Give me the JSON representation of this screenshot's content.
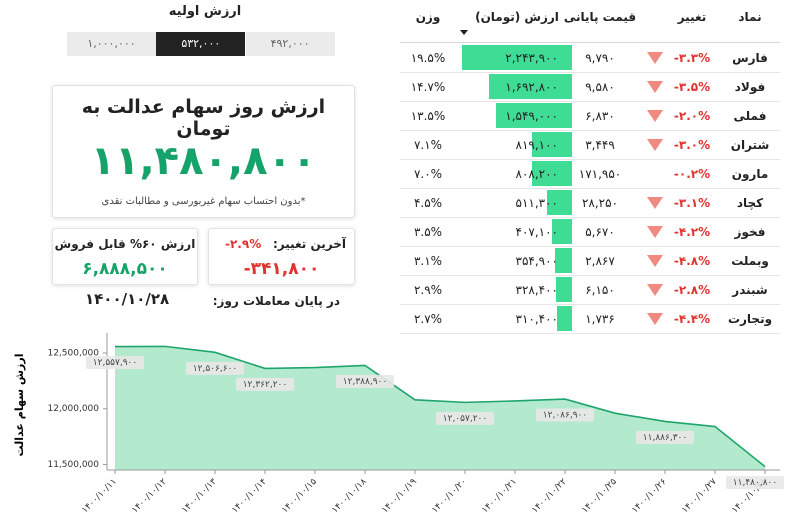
{
  "initial_value": {
    "title": "ارزش اولیه",
    "options": [
      "۱,۰۰۰,۰۰۰",
      "۵۳۲,۰۰۰",
      "۴۹۲,۰۰۰"
    ],
    "selected": 1
  },
  "summary": {
    "title": "ارزش روز سهام عدالت به تومان",
    "value": "۱۱,۴۸۰,۸۰۰",
    "note": "*بدون احتساب سهام غیربورسی و مطالبات نقدی"
  },
  "sellable": {
    "label": "ارزش ۶۰% قابل فروش",
    "value": "۶,۸۸۸,۵۰۰"
  },
  "last_change": {
    "label": "آخرین تغییر:",
    "percent": "-۲.۹%",
    "amount": "-۳۴۱,۸۰۰"
  },
  "end_of_day": {
    "label": "در پایان معاملات روز:",
    "date": "۱۴۰۰/۱۰/۲۸"
  },
  "table": {
    "headers": [
      "نماد",
      "تغییر",
      "قیمت پایانی",
      "ارزش (تومان)",
      "وزن"
    ],
    "rows": [
      {
        "symbol": "فارس",
        "change": "-۳.۳%",
        "down_arrow": true,
        "price": "۹,۷۹۰",
        "value": 2243900,
        "value_label": "۲,۲۴۳,۹۰۰",
        "weight": "۱۹.۵%"
      },
      {
        "symbol": "فولاد",
        "change": "-۳.۵%",
        "down_arrow": true,
        "price": "۹,۵۸۰",
        "value": 1692800,
        "value_label": "۱,۶۹۲,۸۰۰",
        "weight": "۱۴.۷%"
      },
      {
        "symbol": "فملی",
        "change": "-۲.۰%",
        "down_arrow": true,
        "price": "۶,۸۳۰",
        "value": 1549000,
        "value_label": "۱,۵۴۹,۰۰۰",
        "weight": "۱۳.۵%"
      },
      {
        "symbol": "شتران",
        "change": "-۳.۰%",
        "down_arrow": true,
        "price": "۳,۴۴۹",
        "value": 819100,
        "value_label": "۸۱۹,۱۰۰",
        "weight": "۷.۱%"
      },
      {
        "symbol": "مارون",
        "change": "-۰.۲%",
        "down_arrow": false,
        "price": "۱۷۱,۹۵۰",
        "value": 808200,
        "value_label": "۸۰۸,۲۰۰",
        "weight": "۷.۰%"
      },
      {
        "symbol": "کچاد",
        "change": "-۳.۱%",
        "down_arrow": true,
        "price": "۲۸,۲۵۰",
        "value": 511300,
        "value_label": "۵۱۱,۳۰۰",
        "weight": "۴.۵%"
      },
      {
        "symbol": "فخوز",
        "change": "-۴.۲%",
        "down_arrow": true,
        "price": "۵,۶۷۰",
        "value": 407100,
        "value_label": "۴۰۷,۱۰۰",
        "weight": "۳.۵%"
      },
      {
        "symbol": "وبملت",
        "change": "-۴.۸%",
        "down_arrow": true,
        "price": "۲,۸۶۷",
        "value": 354900,
        "value_label": "۳۵۴,۹۰۰",
        "weight": "۳.۱%"
      },
      {
        "symbol": "شبندر",
        "change": "-۲.۸%",
        "down_arrow": true,
        "price": "۶,۱۵۰",
        "value": 328400,
        "value_label": "۳۲۸,۴۰۰",
        "weight": "۲.۹%"
      },
      {
        "symbol": "وتجارت",
        "change": "-۴.۴%",
        "down_arrow": true,
        "price": "۱,۷۳۶",
        "value": 310400,
        "value_label": "۳۱۰,۴۰۰",
        "weight": "۲.۷%"
      }
    ]
  },
  "chart_data": {
    "type": "area",
    "y_label": "ارزش سهام عدالت",
    "categories": [
      "۱۴۰۰/۱۰/۱۱",
      "۱۴۰۰/۱۰/۱۲",
      "۱۴۰۰/۱۰/۱۳",
      "۱۴۰۰/۱۰/۱۴",
      "۱۴۰۰/۱۰/۱۵",
      "۱۴۰۰/۱۰/۱۸",
      "۱۴۰۰/۱۰/۱۹",
      "۱۴۰۰/۱۰/۲۰",
      "۱۴۰۰/۱۰/۲۱",
      "۱۴۰۰/۱۰/۲۲",
      "۱۴۰۰/۱۰/۲۵",
      "۱۴۰۰/۱۰/۲۶",
      "۱۴۰۰/۱۰/۲۷",
      "۱۴۰۰/۱۰/۲۸"
    ],
    "values": [
      12557900,
      12560000,
      12506600,
      12362200,
      12370000,
      12388900,
      12080000,
      12057200,
      12070000,
      12086900,
      11960000,
      11886300,
      11840000,
      11480800
    ],
    "value_labels": [
      "۱۲,۵۵۷,۹۰۰",
      null,
      "۱۲,۵۰۶,۶۰۰",
      "۱۲,۳۶۲,۲۰۰",
      null,
      "۱۲,۳۸۸,۹۰۰",
      null,
      "۱۲,۰۵۷,۲۰۰",
      null,
      "۱۲,۰۸۶,۹۰۰",
      null,
      "۱۱,۸۸۶,۳۰۰",
      null,
      "۱۱,۴۸۰,۸۰۰"
    ],
    "color": "#1fa56b",
    "fill": "#a6e6c6",
    "ylim": [
      11450000,
      12680000
    ],
    "yticks": [
      {
        "value": 11500000,
        "label": "11,500,000"
      },
      {
        "value": 12000000,
        "label": "12,000,000"
      },
      {
        "value": 12500000,
        "label": "12,500,000"
      }
    ]
  }
}
